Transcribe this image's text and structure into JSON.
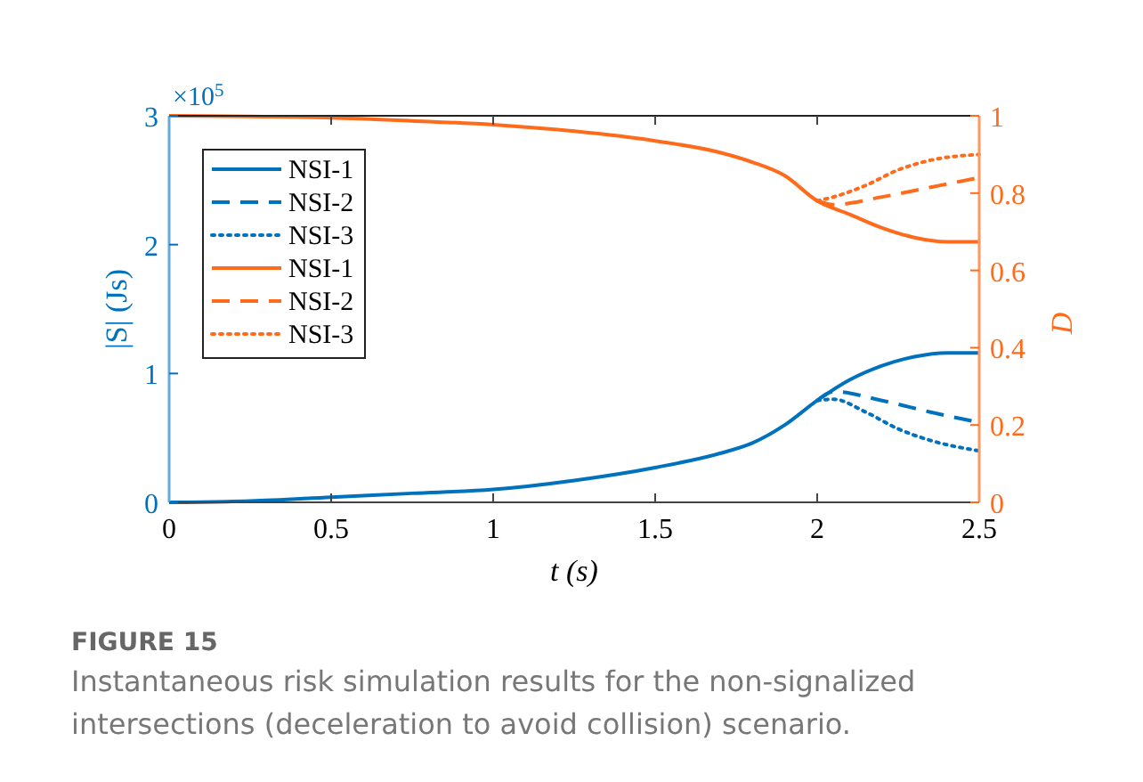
{
  "chart_data": {
    "type": "line",
    "xlabel": "t (s)",
    "ylabel": "|S| (Js)",
    "y2label": "D",
    "xlim": [
      0,
      2.5
    ],
    "xticks": [
      0,
      0.5,
      1,
      1.5,
      2,
      2.5
    ],
    "ylim": [
      0,
      3
    ],
    "yticks": [
      0,
      1,
      2,
      3
    ],
    "y2lim": [
      0,
      1
    ],
    "y2ticks": [
      0,
      0.2,
      0.4,
      0.6,
      0.8,
      1
    ],
    "legend": "top left",
    "grid": false,
    "marker": "none",
    "annotations": [
      "×10$^{5}$",
      "FIGURE 15",
      "Instantaneous risk simulation results for the non-signalized intersections (deceleration to avoid collision) scenario."
    ],
    "series": [
      {
        "name": "NSI-1",
        "color": "#0072bd",
        "line_style": "solid",
        "x": [
          0,
          0.25,
          0.5,
          0.75,
          1,
          1.25,
          1.5,
          1.7,
          1.8,
          1.9,
          2,
          2.1,
          2.2,
          2.3,
          2.4,
          2.5
        ],
        "values": [
          0,
          0.01,
          0.04,
          0.07,
          0.1,
          0.17,
          0.27,
          0.38,
          0.46,
          0.6,
          0.79,
          0.95,
          1.06,
          1.13,
          1.16,
          1.16
        ]
      },
      {
        "name": "NSI-2",
        "color": "#0072bd",
        "line_style": "dashed",
        "x": [
          2,
          2.05,
          2.2,
          2.35,
          2.5
        ],
        "values": [
          0.79,
          0.86,
          0.79,
          0.7,
          0.62
        ]
      },
      {
        "name": "NSI-3",
        "color": "#0072bd",
        "line_style": "dotted",
        "x": [
          2,
          2.05,
          2.15,
          2.25,
          2.35,
          2.5
        ],
        "values": [
          0.79,
          0.8,
          0.7,
          0.57,
          0.48,
          0.4
        ]
      },
      {
        "name": "NSI-1",
        "color": "#ff6b1a",
        "line_style": "solid",
        "axis": "y2",
        "x": [
          0,
          0.25,
          0.5,
          0.75,
          1,
          1.25,
          1.5,
          1.7,
          1.8,
          1.9,
          2,
          2.1,
          2.2,
          2.3,
          2.4,
          2.5
        ],
        "values": [
          1,
          0.998,
          0.995,
          0.987,
          0.977,
          0.96,
          0.935,
          0.905,
          0.88,
          0.845,
          0.78,
          0.745,
          0.71,
          0.685,
          0.674,
          0.674
        ]
      },
      {
        "name": "NSI-2",
        "color": "#ff6b1a",
        "line_style": "dashed",
        "axis": "y2",
        "x": [
          2,
          2.05,
          2.2,
          2.35,
          2.5
        ],
        "values": [
          0.78,
          0.77,
          0.79,
          0.815,
          0.84
        ]
      },
      {
        "name": "NSI-3",
        "color": "#ff6b1a",
        "line_style": "dotted",
        "axis": "y2",
        "x": [
          2,
          2.05,
          2.15,
          2.25,
          2.35,
          2.5
        ],
        "values": [
          0.78,
          0.79,
          0.82,
          0.86,
          0.885,
          0.9
        ]
      }
    ]
  }
}
